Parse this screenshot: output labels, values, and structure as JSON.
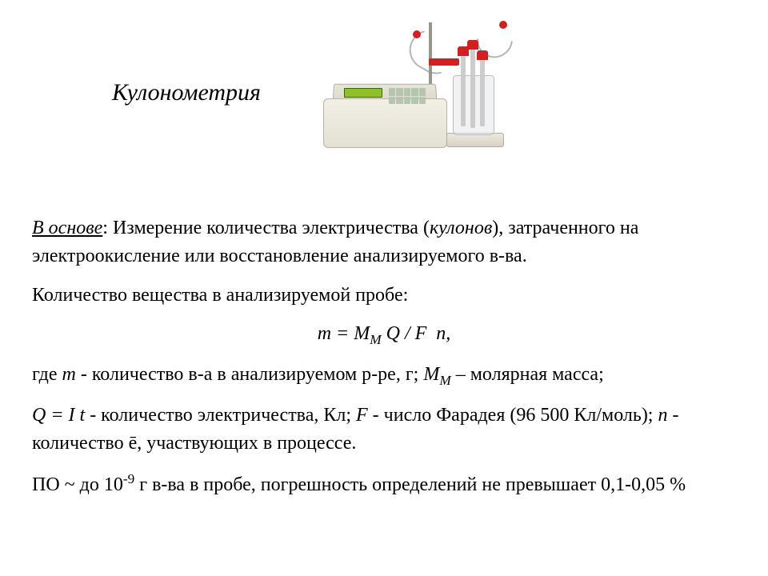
{
  "title": "Кулонометрия",
  "basis_label": "В основе",
  "basis_text_1": ": Измерение количества электричества (",
  "basis_kulonov": "кулонов",
  "basis_text_2": "), затраченного на электроокисление или восстановление анализируемого в-ва.",
  "quantity_intro": "Количество вещества в анализируемой пробе:",
  "formula_display": "m = Mᴍ Q / F  n,",
  "defs": {
    "lead": "где ",
    "m_sym": "m",
    "m_txt": " - количество в-а в анализируемом р-ре, г; ",
    "MM_pre": "М",
    "MM_sub": "М",
    "MM_txt": " – молярная масса;",
    "Q_sym": "Q = I t",
    "Q_txt": " - количество электричества, Кл; ",
    "F_sym": "F",
    "F_txt": " - число Фарадея (96 500 Кл/моль); ",
    "n_sym": "n",
    "n_txt": " - количество ē, участвующих в процессе."
  },
  "limit": {
    "pre": "ПО ~ до 10",
    "exp": "-9",
    "post": " г в-ва в пробе, погрешность определений не превышает 0,1-0,05 %"
  },
  "device": {
    "base_color": "#e4e0d4",
    "accent_color": "#d21f1f",
    "display_color": "#8fbf2a"
  }
}
